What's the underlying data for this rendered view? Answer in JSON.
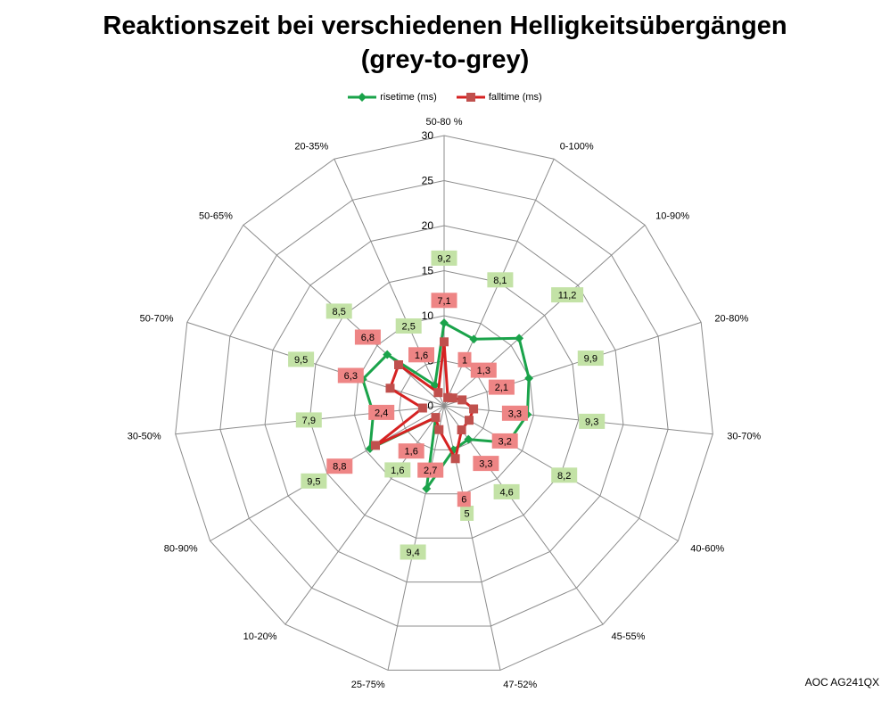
{
  "chart_data": {
    "type": "radar",
    "title_line1": "Reaktionszeit bei verschiedenen Helligkeitsübergängen",
    "title_line2": "(grey-to-grey)",
    "categories": [
      "50-80 %",
      "0-100%",
      "10-90%",
      "20-80%",
      "30-70%",
      "40-60%",
      "45-55%",
      "47-52%",
      "25-75%",
      "10-20%",
      "80-90%",
      "30-50%",
      "50-70%",
      "50-65%",
      "20-35%"
    ],
    "rlim": [
      0,
      30
    ],
    "rticks": [
      "0",
      "5",
      "10",
      "15",
      "20",
      "25",
      "30"
    ],
    "grid": true,
    "legend_position": "top",
    "series": [
      {
        "name": "risetime (ms)",
        "color": "#1aa34a",
        "label_bg": "#c3e2a6",
        "values": [
          9.2,
          8.1,
          11.2,
          9.9,
          9.3,
          8.2,
          4.6,
          5,
          9.4,
          1.6,
          9.5,
          7.9,
          9.5,
          8.5,
          2.5
        ],
        "labels": [
          "9,2",
          "8,1",
          "11,2",
          "9,9",
          "9,3",
          "8,2",
          "4,6",
          "5",
          "9,4",
          "1,6",
          "9,5",
          "7,9",
          "9,5",
          "8,5",
          "2,5"
        ]
      },
      {
        "name": "falltime (ms)",
        "color": "#d62222",
        "label_bg": "#ee8585",
        "values": [
          7.1,
          1,
          1.3,
          2.1,
          3.3,
          3.2,
          3.3,
          6,
          2.7,
          1.6,
          8.8,
          2.4,
          6.3,
          6.8,
          1.6
        ],
        "labels": [
          "7,1",
          "1",
          "1,3",
          "2,1",
          "3,3",
          "3,2",
          "3,3",
          "6",
          "2,7",
          "1,6",
          "8,8",
          "2,4",
          "6,3",
          "6,8",
          "1,6"
        ]
      }
    ]
  },
  "footer": {
    "model": "AOC AG241QX"
  }
}
